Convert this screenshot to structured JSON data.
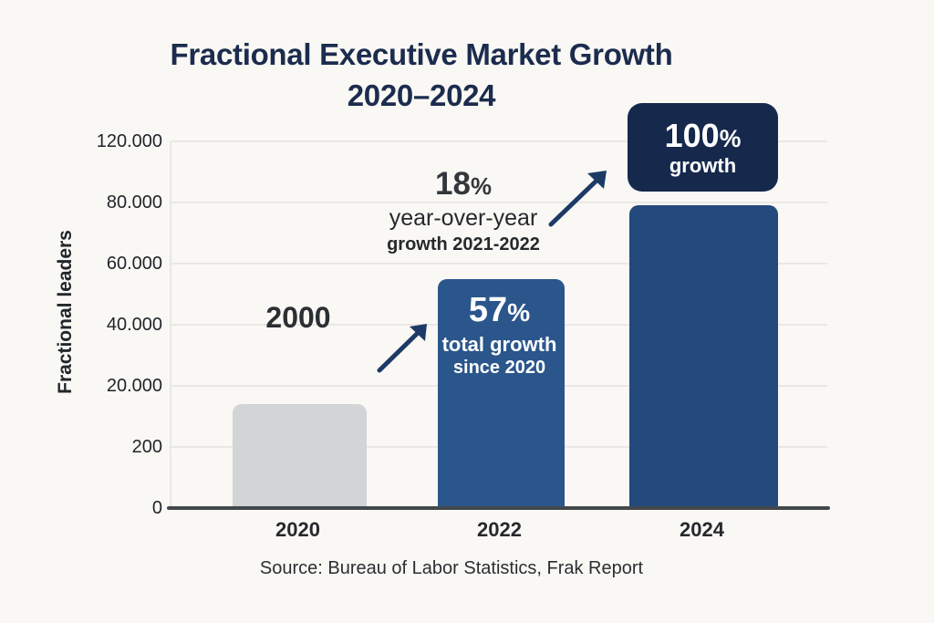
{
  "page": {
    "background": "#faf8f4"
  },
  "title": {
    "line1": "Fractional Executive Market Growth",
    "line2": "2020–2024"
  },
  "chart_data": {
    "type": "bar",
    "title": "Fractional Executive Market Growth 2020–2024",
    "xlabel": "",
    "ylabel": "Fractional leaders",
    "categories": [
      "2020",
      "2022",
      "2024"
    ],
    "values": [
      14000,
      55000,
      79000
    ],
    "bars": [
      {
        "category": "2020",
        "value": 14000,
        "color": "#d2d4d6"
      },
      {
        "category": "2022",
        "value": 55000,
        "color": "#2a568c"
      },
      {
        "category": "2024",
        "value": 79000,
        "color": "#23497d"
      }
    ],
    "yticks": [
      {
        "label": "0",
        "value": 0
      },
      {
        "label": "200",
        "value": 200
      },
      {
        "label": "20.000",
        "value": 20000
      },
      {
        "label": "40.000",
        "value": 40000
      },
      {
        "label": "60.000",
        "value": 60000
      },
      {
        "label": "80.000",
        "value": 80000
      },
      {
        "label": "120.000",
        "value": 120000
      }
    ],
    "grid": "horizontal",
    "legend": false,
    "annotations": [
      "2000",
      "18% year-over-year growth 2021-2022",
      "57% total growth since 2020",
      "100% growth"
    ],
    "source": "Source: Bureau of Labor Statistics, Frak Report"
  },
  "annotations": {
    "start_value": "2000",
    "yoy_pct": "18",
    "yoy_pct_sign": "%",
    "yoy_line1": "year-over-year",
    "yoy_line2": "growth 2021-2022",
    "total_pct": "57",
    "total_pct_sign": "%",
    "total_line1": "total growth",
    "total_line2": "since 2020",
    "box_pct": "100",
    "box_pct_sign": "%",
    "box_line1": "growth"
  },
  "source": "Source: Bureau of Labor Statistics, Frak Report",
  "colors": {
    "title": "#1b2c4e",
    "bar_2020": "#d2d4d6",
    "bar_2022": "#2a568c",
    "bar_2024": "#23497d",
    "growth_box": "#16294d",
    "arrow": "#1d3a66",
    "baseline": "#43484c",
    "gridline": "#e9e8e4",
    "background": "#faf8f4"
  }
}
